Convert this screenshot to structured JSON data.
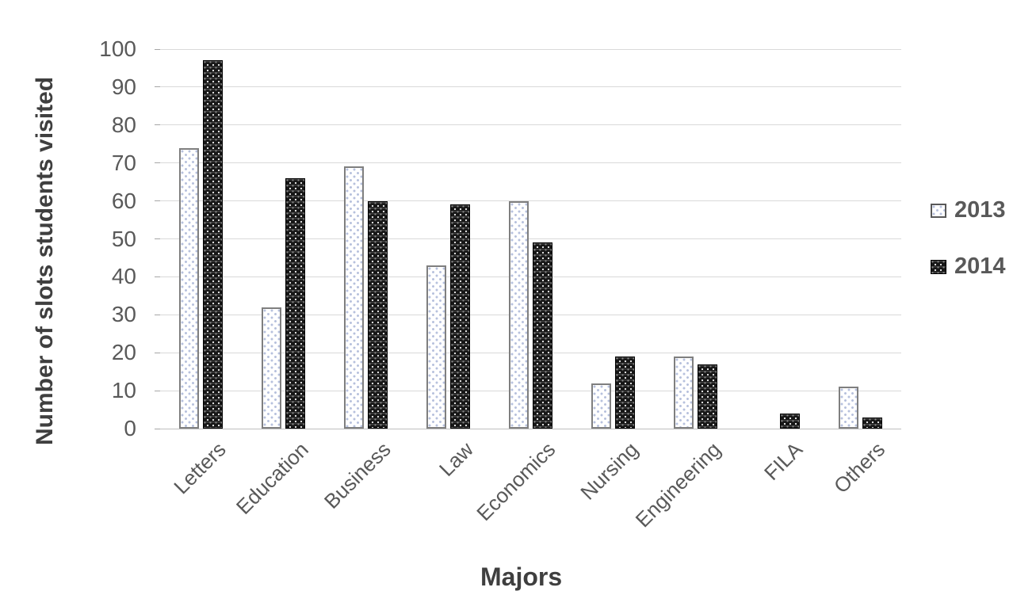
{
  "chart_data": {
    "type": "bar",
    "categories": [
      "Letters",
      "Education",
      "Business",
      "Law",
      "Economics",
      "Nursing",
      "Engineering",
      "FILA",
      "Others"
    ],
    "series": [
      {
        "name": "2013",
        "values": [
          74,
          32,
          69,
          43,
          60,
          12,
          19,
          0,
          11
        ]
      },
      {
        "name": "2014",
        "values": [
          97,
          66,
          60,
          59,
          49,
          19,
          17,
          4,
          3
        ]
      }
    ],
    "xlabel": "Majors",
    "ylabel": "Number of slots students visited",
    "ylim": [
      0,
      100
    ],
    "yticks": [
      0,
      10,
      20,
      30,
      40,
      50,
      60,
      70,
      80,
      90,
      100
    ],
    "grid": true,
    "legend_position": "right"
  },
  "colors": {
    "gridline": "#d9d9d9",
    "baseline": "#bfbfbf",
    "tick_label": "#595959",
    "axis_title": "#3f3f3f",
    "legend_text": "#595959",
    "series_2013_fill": "#ffffff",
    "series_2013_dot": "#b7c1dd",
    "series_2013_border": "#7f7f7f",
    "series_2014_fill": "#161616",
    "series_2014_border": "#000000"
  }
}
